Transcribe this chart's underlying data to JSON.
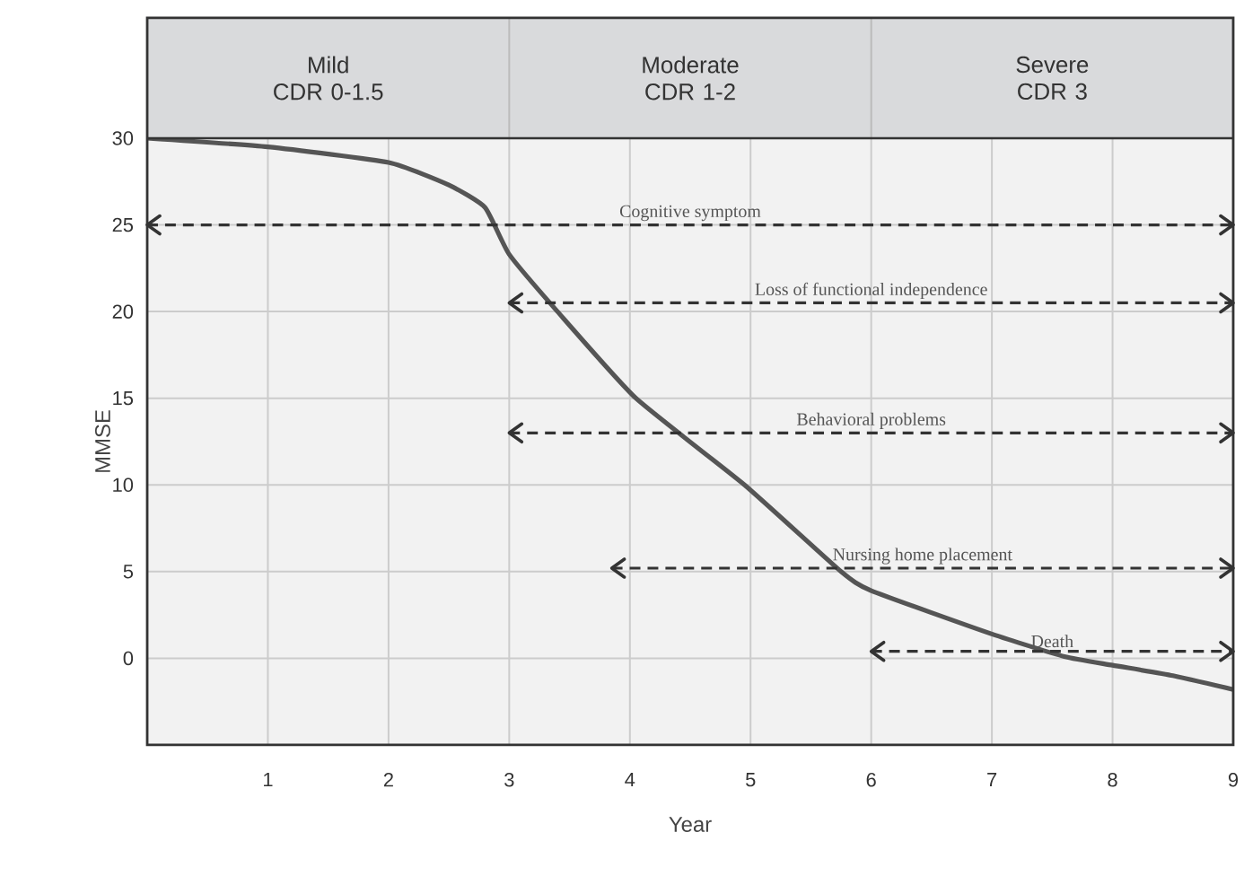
{
  "chart_data": {
    "type": "line",
    "xlabel": "Year",
    "ylabel": "MMSE",
    "xlim": [
      0,
      9
    ],
    "xticks": [
      1,
      2,
      3,
      4,
      5,
      6,
      7,
      8,
      9
    ],
    "ylim": [
      -5,
      30
    ],
    "yticks": [
      0,
      5,
      10,
      15,
      20,
      25,
      30
    ],
    "grid": true,
    "legend": false,
    "marker": "none",
    "annotations": [
      "Mild\nCDR 0-1.5",
      "Moderate\nCDR 1-2",
      "Severe\nCDR 3"
    ],
    "series": [
      {
        "color": "#555555",
        "line_style": "solid",
        "x": [
          0,
          1,
          2,
          2.5,
          2.8,
          3,
          3.4,
          4.05,
          4.95,
          5.75,
          6,
          7,
          7.6,
          8,
          8.5,
          9
        ],
        "values": [
          30,
          29.5,
          28.6,
          27.3,
          26,
          23.3,
          20,
          15,
          10,
          5,
          3.9,
          1.4,
          0.1,
          -0.4,
          -1,
          -1.8
        ]
      },
      {
        "name": "Cognitive symptom",
        "color": "#333333",
        "line_style": "dashed",
        "x": [
          0,
          9
        ],
        "values": [
          25,
          25
        ]
      },
      {
        "name": "Loss of functional independence",
        "color": "#333333",
        "line_style": "dashed",
        "x": [
          3,
          9
        ],
        "values": [
          20.5,
          20.5
        ]
      },
      {
        "name": "Behavioral problems",
        "color": "#333333",
        "line_style": "dashed",
        "x": [
          3,
          9
        ],
        "values": [
          13,
          13
        ]
      },
      {
        "name": "Nursing home placement",
        "color": "#333333",
        "line_style": "dashed",
        "x": [
          3.85,
          9
        ],
        "values": [
          5.2,
          5.2
        ]
      },
      {
        "name": "Death",
        "color": "#333333",
        "line_style": "dashed",
        "x": [
          6,
          9
        ],
        "values": [
          0.4,
          0.4
        ]
      }
    ]
  }
}
